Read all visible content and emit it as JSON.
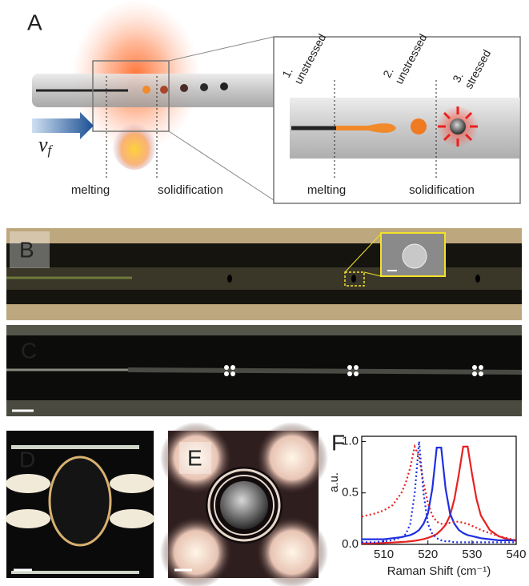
{
  "labels": [
    "A",
    "B",
    "C",
    "D",
    "E",
    "F"
  ],
  "panel_a": {
    "velocity": "v",
    "velocity_sub": "f",
    "left_labels": [
      "melting",
      "solidification"
    ],
    "stages": [
      {
        "number": "1.",
        "state": "unstressed"
      },
      {
        "number": "2.",
        "state": "unstressed"
      },
      {
        "number": "3.",
        "state": "stressed"
      }
    ],
    "right_labels": [
      "melting",
      "solidification"
    ]
  },
  "chart_data": {
    "type": "line",
    "xlabel": "Raman Shift (cm⁻¹)",
    "ylabel": "a.u.",
    "x": [
      505,
      508,
      510,
      512,
      514,
      515,
      516,
      517,
      518,
      519,
      520,
      521,
      522,
      523,
      524,
      525,
      526,
      527,
      528,
      529,
      530,
      531,
      532,
      534,
      536,
      538,
      540
    ],
    "series": [
      {
        "color": "#e8211f",
        "linestyle": "solid",
        "values": [
          0.009,
          0.011,
          0.014,
          0.018,
          0.023,
          0.026,
          0.03,
          0.035,
          0.042,
          0.051,
          0.063,
          0.079,
          0.1,
          0.14,
          0.19,
          0.28,
          0.44,
          0.68,
          0.95,
          0.95,
          0.68,
          0.44,
          0.28,
          0.14,
          0.079,
          0.051,
          0.035
        ]
      },
      {
        "color": "#1f2fe0",
        "linestyle": "solid",
        "values": [
          0.05,
          0.05,
          0.05,
          0.06,
          0.07,
          0.08,
          0.09,
          0.11,
          0.14,
          0.2,
          0.3,
          0.54,
          0.94,
          0.94,
          0.54,
          0.3,
          0.2,
          0.14,
          0.11,
          0.09,
          0.08,
          0.07,
          0.06,
          0.05,
          0.04,
          0.04,
          0.04
        ]
      },
      {
        "color": "#e8211f",
        "linestyle": "dotted",
        "values": [
          0.27,
          0.3,
          0.33,
          0.38,
          0.5,
          0.6,
          0.75,
          0.95,
          0.85,
          0.6,
          0.4,
          0.28,
          0.22,
          0.2,
          0.2,
          0.21,
          0.22,
          0.22,
          0.21,
          0.2,
          0.18,
          0.16,
          0.14,
          0.11,
          0.08,
          0.06,
          0.04
        ]
      },
      {
        "color": "#1f2fe0",
        "linestyle": "dotted",
        "values": [
          0.02,
          0.02,
          0.03,
          0.04,
          0.07,
          0.1,
          0.2,
          0.5,
          1.0,
          0.5,
          0.2,
          0.1,
          0.06,
          0.04,
          0.03,
          0.03,
          0.02,
          0.02,
          0.02,
          0.02,
          0.02,
          0.02,
          0.02,
          0.02,
          0.02,
          0.02,
          0.02
        ]
      }
    ],
    "xlim": [
      505,
      540
    ],
    "xticks": [
      510,
      520,
      530,
      540
    ],
    "ylim": [
      0,
      1.05
    ],
    "yticks": [
      {
        "value": 0,
        "label": "0.0"
      },
      0.5,
      {
        "value": 1,
        "label": "1.0"
      }
    ]
  }
}
